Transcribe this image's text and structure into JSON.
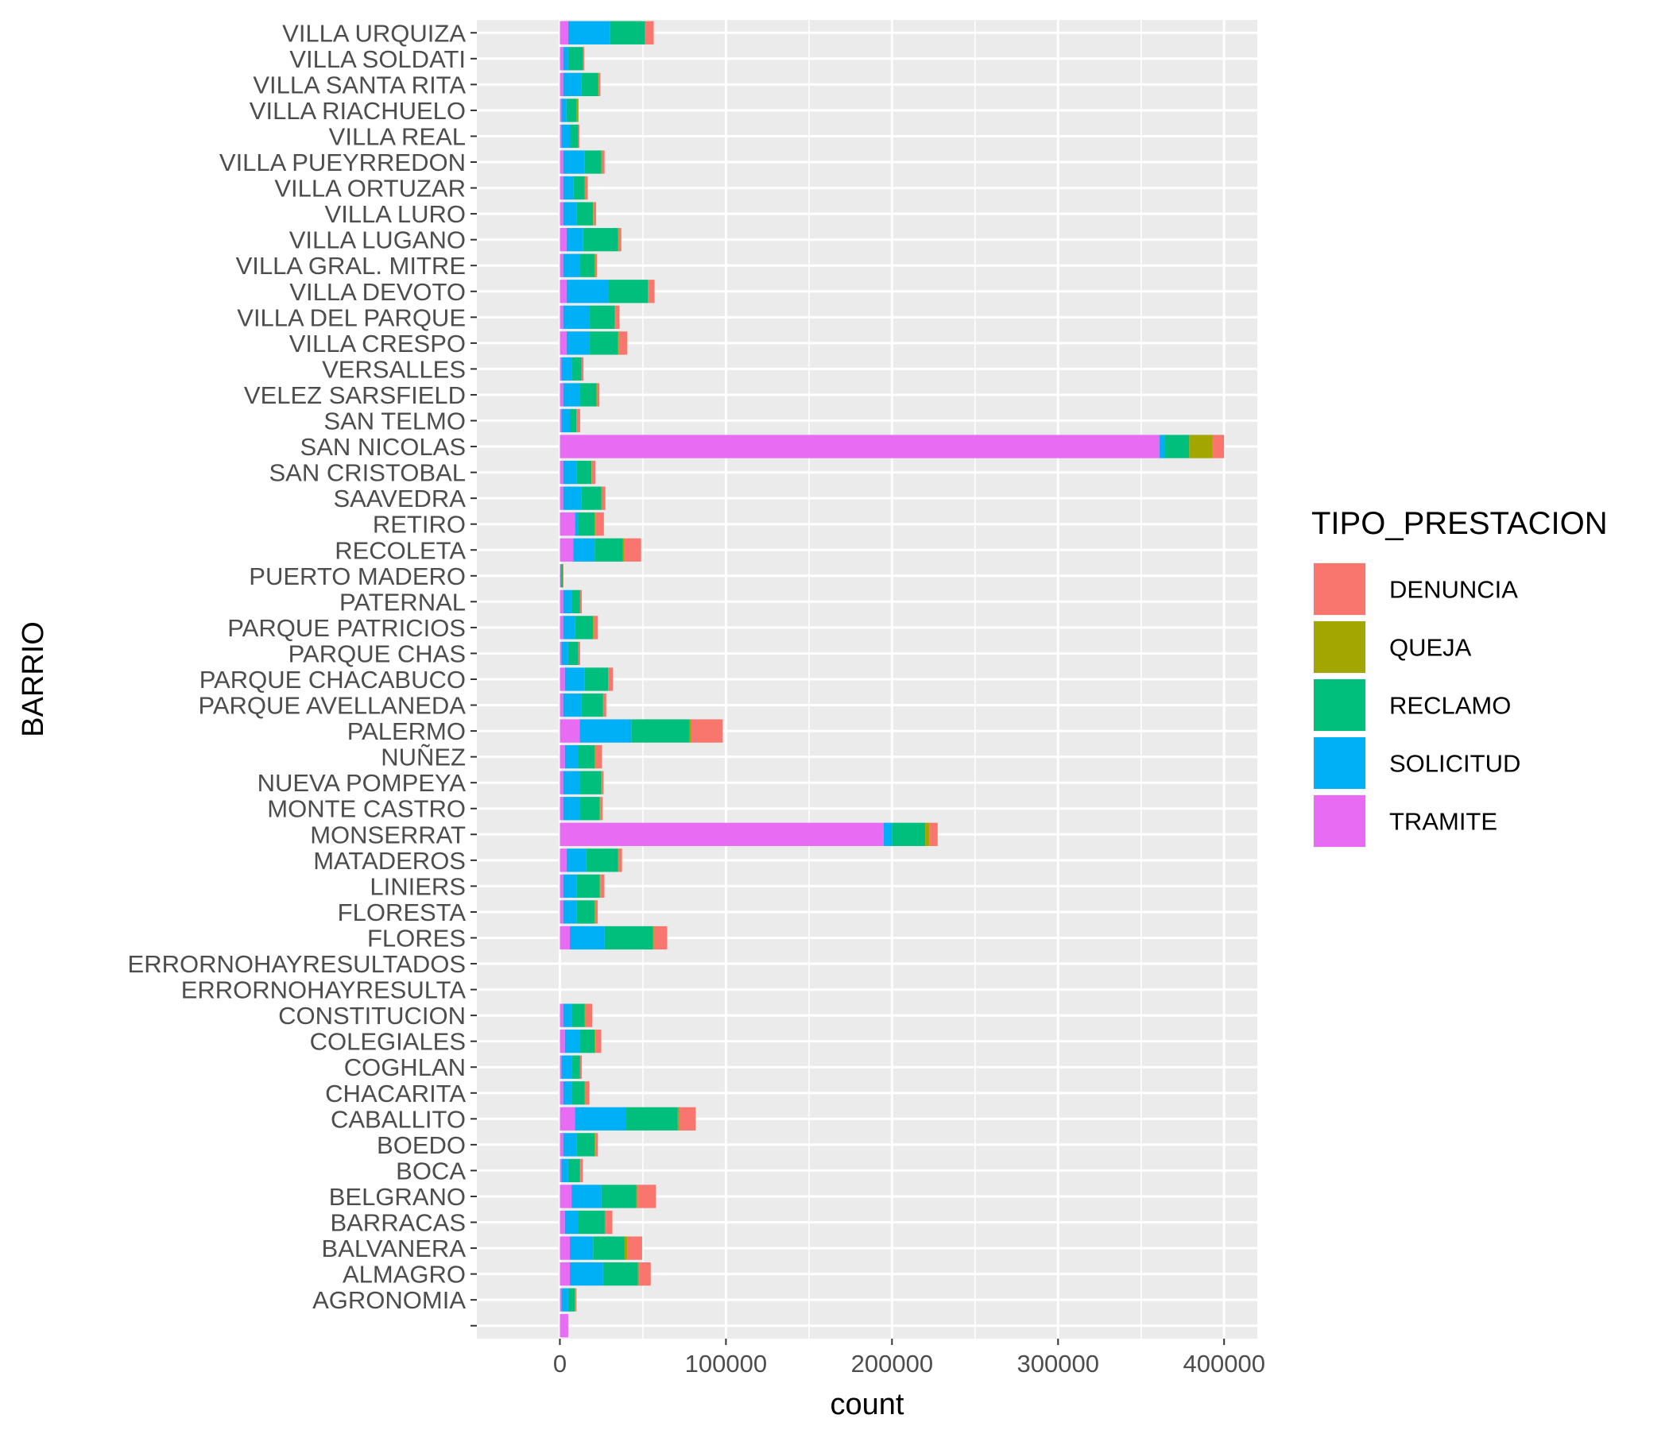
{
  "chart_data": {
    "type": "bar",
    "orientation": "horizontal",
    "stacked": true,
    "xlabel": "count",
    "ylabel": "BARRIO",
    "xlim": [
      -50000,
      420000
    ],
    "xticks": [
      0,
      100000,
      200000,
      300000,
      400000
    ],
    "xtick_labels": [
      "0",
      "100000",
      "200000",
      "300000",
      "400000"
    ],
    "grid": true,
    "legend": {
      "title": "TIPO_PRESTACION",
      "position": "right",
      "entries": [
        "DENUNCIA",
        "QUEJA",
        "RECLAMO",
        "SOLICITUD",
        "TRAMITE"
      ]
    },
    "colors": {
      "DENUNCIA": "#F8766D",
      "QUEJA": "#A3A500",
      "RECLAMO": "#00BF7D",
      "SOLICITUD": "#00B0F6",
      "TRAMITE": "#E76BF3"
    },
    "stack_order": [
      "TRAMITE",
      "SOLICITUD",
      "RECLAMO",
      "QUEJA",
      "DENUNCIA"
    ],
    "categories": [
      "VILLA URQUIZA",
      "VILLA SOLDATI",
      "VILLA SANTA RITA",
      "VILLA RIACHUELO",
      "VILLA REAL",
      "VILLA PUEYRREDON",
      "VILLA ORTUZAR",
      "VILLA LURO",
      "VILLA LUGANO",
      "VILLA GRAL. MITRE",
      "VILLA DEVOTO",
      "VILLA DEL PARQUE",
      "VILLA CRESPO",
      "VERSALLES",
      "VELEZ SARSFIELD",
      "SAN TELMO",
      "SAN NICOLAS",
      "SAN CRISTOBAL",
      "SAAVEDRA",
      "RETIRO",
      "RECOLETA",
      "PUERTO MADERO",
      "PATERNAL",
      "PARQUE PATRICIOS",
      "PARQUE CHAS",
      "PARQUE CHACABUCO",
      "PARQUE AVELLANEDA",
      "PALERMO",
      "NUÑEZ",
      "NUEVA POMPEYA",
      "MONTE CASTRO",
      "MONSERRAT",
      "MATADEROS",
      "LINIERS",
      "FLORESTA",
      "FLORES",
      "ERRORNOHAYRESULTADOS",
      "ERRORNOHAYRESULTA",
      "CONSTITUCION",
      "COLEGIALES",
      "COGHLAN",
      "CHACARITA",
      "CABALLITO",
      "BOEDO",
      "BOCA",
      "BELGRANO",
      "BARRACAS",
      "BALVANERA",
      "ALMAGRO",
      "AGRONOMIA",
      ""
    ],
    "series": [
      {
        "name": "TRAMITE",
        "values": [
          5000,
          2000,
          2000,
          1000,
          1000,
          2000,
          2000,
          2000,
          4000,
          2000,
          4000,
          2000,
          4000,
          1000,
          2000,
          1000,
          361000,
          2000,
          2000,
          9000,
          8000,
          300,
          2000,
          2000,
          1000,
          3000,
          2000,
          12000,
          3000,
          2000,
          2000,
          195000,
          4000,
          2000,
          2000,
          6000,
          0,
          0,
          2000,
          3000,
          1000,
          2000,
          9000,
          2000,
          1000,
          7000,
          3000,
          6000,
          6000,
          1000,
          5000
        ]
      },
      {
        "name": "SOLICITUD",
        "values": [
          25000,
          3000,
          11000,
          3000,
          5000,
          13000,
          6000,
          8000,
          10000,
          10000,
          25000,
          16000,
          14000,
          6000,
          10000,
          5000,
          3000,
          8000,
          11000,
          2000,
          13000,
          500,
          5000,
          7000,
          4000,
          12000,
          11000,
          31000,
          8000,
          10000,
          10000,
          5000,
          12000,
          8000,
          8000,
          21000,
          0,
          0,
          5000,
          9000,
          6000,
          5000,
          31000,
          8000,
          4000,
          18000,
          8000,
          14000,
          20000,
          4000,
          0
        ]
      },
      {
        "name": "RECLAMO",
        "values": [
          21000,
          9000,
          10000,
          6000,
          5000,
          10000,
          7000,
          10000,
          21000,
          9000,
          24000,
          15000,
          17000,
          6000,
          10000,
          4000,
          15000,
          9000,
          12000,
          10000,
          17000,
          1000,
          5000,
          11000,
          6000,
          14000,
          13000,
          35000,
          10000,
          13000,
          12000,
          20000,
          19000,
          14000,
          11000,
          29000,
          0,
          0,
          8000,
          9000,
          5000,
          8000,
          31000,
          11000,
          7000,
          21000,
          16000,
          19000,
          21000,
          4000,
          0
        ]
      },
      {
        "name": "QUEJA",
        "values": [
          500,
          200,
          400,
          1000,
          200,
          400,
          300,
          300,
          500,
          300,
          500,
          400,
          500,
          200,
          300,
          200,
          14000,
          300,
          400,
          500,
          900,
          100,
          200,
          400,
          200,
          400,
          400,
          1000,
          300,
          300,
          300,
          2500,
          400,
          300,
          300,
          600,
          0,
          0,
          400,
          400,
          200,
          300,
          800,
          400,
          300,
          800,
          600,
          1500,
          700,
          500,
          0
        ]
      },
      {
        "name": "DENUNCIA",
        "values": [
          5000,
          500,
          1000,
          200,
          500,
          1500,
          1500,
          1500,
          1500,
          1000,
          3500,
          2500,
          5000,
          1000,
          1500,
          2000,
          7000,
          2000,
          2000,
          5000,
          10000,
          100,
          1000,
          2500,
          1000,
          2500,
          1500,
          19000,
          4000,
          1000,
          1500,
          5000,
          2000,
          2500,
          1500,
          8000,
          0,
          0,
          4000,
          3500,
          1000,
          2500,
          10000,
          1500,
          1500,
          11000,
          4000,
          9000,
          7000,
          500,
          0
        ]
      }
    ]
  }
}
